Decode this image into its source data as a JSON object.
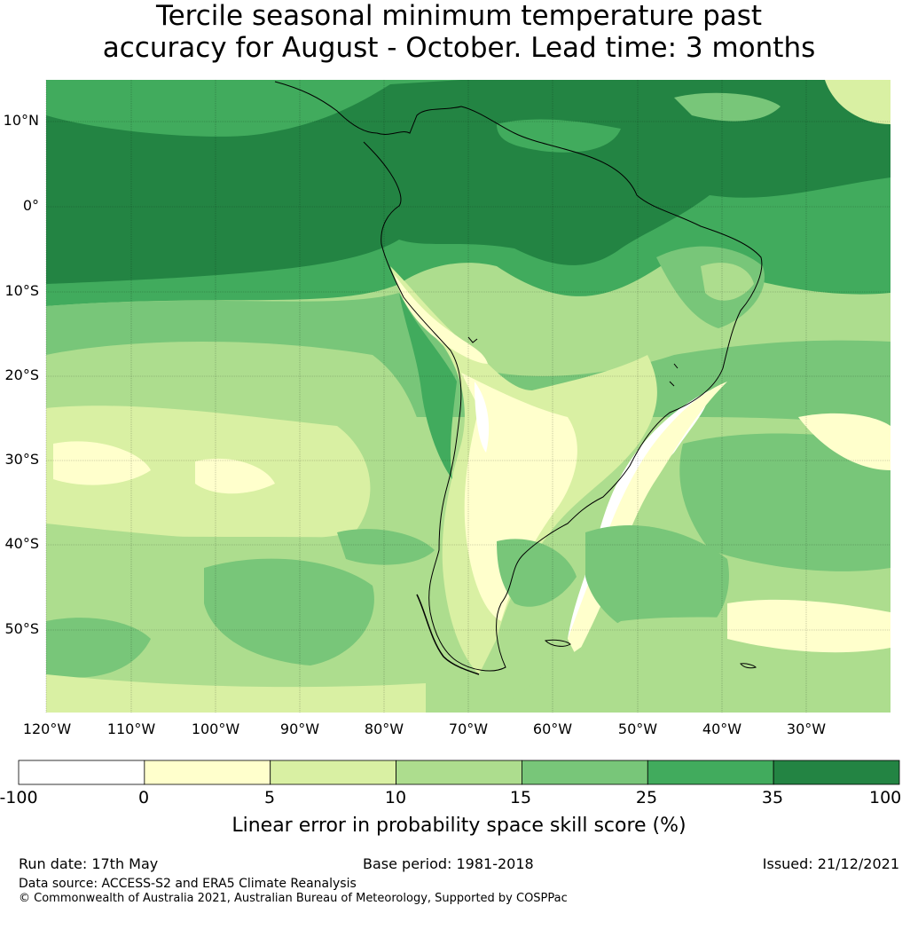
{
  "title_line1": "Tercile seasonal minimum temperature past",
  "title_line2": "accuracy for August - October. Lead time: 3 months",
  "map": {
    "lat_labels": [
      "10°N",
      "0°",
      "10°S",
      "20°S",
      "30°S",
      "40°S",
      "50°S"
    ],
    "lon_labels": [
      "120°W",
      "110°W",
      "100°W",
      "90°W",
      "80°W",
      "70°W",
      "60°W",
      "50°W",
      "40°W",
      "30°W"
    ]
  },
  "colorbar": {
    "title": "Linear error in probability space skill score (%)",
    "ticks": [
      "-100",
      "0",
      "5",
      "10",
      "15",
      "25",
      "35",
      "100"
    ],
    "colors": [
      "#ffffff",
      "#ffffcc",
      "#d9f0a3",
      "#addd8e",
      "#78c679",
      "#41ab5d",
      "#238443"
    ]
  },
  "footer": {
    "run_date": "Run date: 17th May",
    "base_period": "Base period: 1981-2018",
    "issued": "Issued: 21/12/2021",
    "data_source": "Data source: ACCESS-S2 and ERA5 Climate Reanalysis",
    "copyright": "© Commonwealth of Australia 2021, Australian Bureau of Meteorology, Supported by COSPPac"
  }
}
